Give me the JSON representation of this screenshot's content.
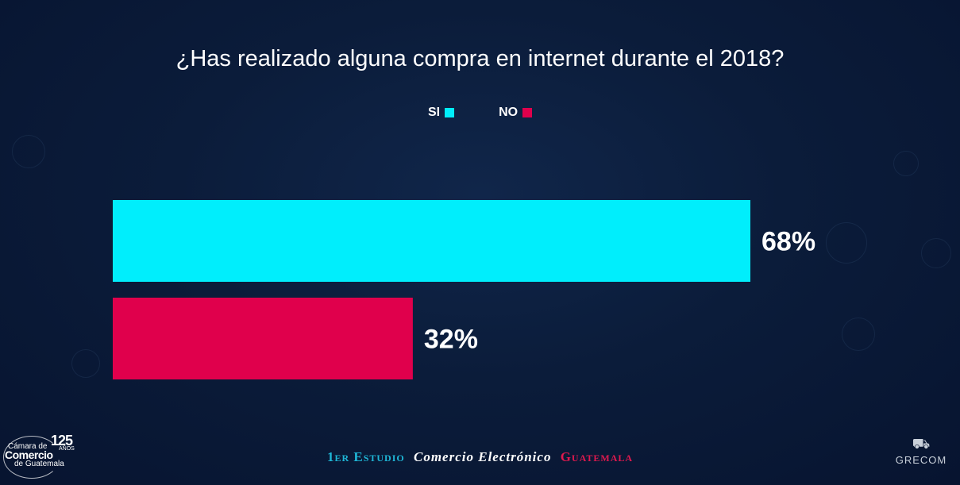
{
  "chart_data": {
    "type": "bar",
    "orientation": "horizontal",
    "title": "¿Has realizado alguna compra en internet durante el 2018?",
    "categories": [
      "SI",
      "NO"
    ],
    "values": [
      68,
      32
    ],
    "value_labels": [
      "68%",
      "32%"
    ],
    "colors": [
      "#00eefc",
      "#e0004c"
    ],
    "xlim": [
      0,
      68
    ],
    "legend": [
      {
        "label": "SI",
        "color": "#00eefc"
      },
      {
        "label": "NO",
        "color": "#e0004c"
      }
    ],
    "legend_position": "top-center"
  },
  "footer": {
    "part1": "1er Estudio",
    "part2": "Comercio Electrónico",
    "part3": "Guatemala"
  },
  "logos": {
    "camara_line1": "Cámara de",
    "camara_line2": "Comercio",
    "camara_line3": "de Guatemala",
    "camara_years": "125",
    "camara_years_label": "AÑOS",
    "grecom": "GRECOM"
  }
}
